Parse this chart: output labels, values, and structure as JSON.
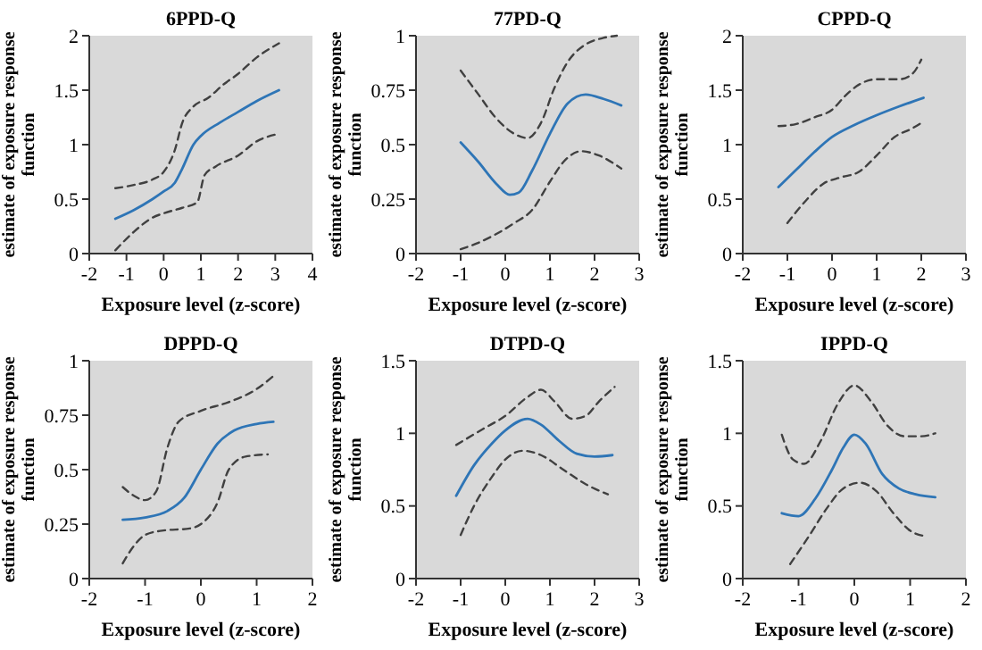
{
  "chart_data": [
    {
      "type": "line",
      "title": "6PPD-Q",
      "xlabel": "Exposure level (z-score)",
      "ylabel": "estimate of exposure response function",
      "xlim": [
        -2,
        4
      ],
      "xticks": [
        -2,
        -1,
        0,
        1,
        2,
        3,
        4
      ],
      "ylim": [
        0,
        2
      ],
      "yticks": [
        0,
        0.5,
        1,
        1.5,
        2
      ],
      "series": [
        {
          "color": "#2e75b6",
          "line_style": "solid",
          "x": [
            -1.3,
            -0.8,
            -0.3,
            0,
            0.3,
            0.5,
            0.8,
            1,
            1.5,
            2,
            2.5,
            3.1
          ],
          "values": [
            0.32,
            0.4,
            0.5,
            0.57,
            0.65,
            0.78,
            1.0,
            1.08,
            1.2,
            1.3,
            1.4,
            1.5
          ]
        },
        {
          "color": "#404040",
          "line_style": "dashed",
          "x": [
            -1.3,
            -0.8,
            -0.3,
            0,
            0.3,
            0.5,
            0.8,
            1.2,
            1.6,
            2,
            2.5,
            3.1
          ],
          "values": [
            0.6,
            0.63,
            0.68,
            0.75,
            0.95,
            1.2,
            1.35,
            1.43,
            1.55,
            1.65,
            1.8,
            1.93
          ]
        },
        {
          "color": "#404040",
          "line_style": "dashed",
          "x": [
            -1.3,
            -0.8,
            -0.3,
            0,
            0.5,
            0.9,
            1.1,
            1.4,
            2,
            2.5,
            3.1
          ],
          "values": [
            0.03,
            0.2,
            0.33,
            0.37,
            0.42,
            0.47,
            0.72,
            0.8,
            0.9,
            1.03,
            1.1
          ]
        }
      ]
    },
    {
      "type": "line",
      "title": "77PD-Q",
      "xlabel": "Exposure level (z-score)",
      "ylabel": "estimate of exposure response function",
      "xlim": [
        -2,
        3
      ],
      "xticks": [
        -2,
        -1,
        0,
        1,
        2,
        3
      ],
      "ylim": [
        0,
        1
      ],
      "yticks": [
        0,
        0.25,
        0.5,
        0.75,
        1
      ],
      "series": [
        {
          "color": "#2e75b6",
          "line_style": "solid",
          "x": [
            -1,
            -0.6,
            -0.2,
            0.1,
            0.3,
            0.6,
            1,
            1.4,
            1.8,
            2.2,
            2.6
          ],
          "values": [
            0.51,
            0.42,
            0.32,
            0.27,
            0.28,
            0.38,
            0.55,
            0.69,
            0.73,
            0.71,
            0.68
          ]
        },
        {
          "color": "#404040",
          "line_style": "dashed",
          "x": [
            -1,
            -0.6,
            -0.2,
            0.2,
            0.5,
            0.8,
            1.1,
            1.4,
            1.8,
            2.2,
            2.5
          ],
          "values": [
            0.84,
            0.73,
            0.62,
            0.55,
            0.53,
            0.6,
            0.76,
            0.88,
            0.96,
            0.99,
            1.0
          ]
        },
        {
          "color": "#404040",
          "line_style": "dashed",
          "x": [
            -1,
            -0.6,
            -0.2,
            0.2,
            0.6,
            1,
            1.3,
            1.7,
            2.1,
            2.6
          ],
          "values": [
            0.02,
            0.05,
            0.09,
            0.14,
            0.2,
            0.33,
            0.42,
            0.47,
            0.45,
            0.39
          ]
        }
      ]
    },
    {
      "type": "line",
      "title": "CPPD-Q",
      "xlabel": "Exposure level (z-score)",
      "ylabel": "estimate of exposure response function",
      "xlim": [
        -2,
        3
      ],
      "xticks": [
        -2,
        -1,
        0,
        1,
        2,
        3
      ],
      "ylim": [
        0,
        2
      ],
      "yticks": [
        0,
        0.5,
        1,
        1.5,
        2
      ],
      "series": [
        {
          "color": "#2e75b6",
          "line_style": "solid",
          "x": [
            -1.2,
            -0.8,
            -0.4,
            0,
            0.5,
            1,
            1.5,
            2.05
          ],
          "values": [
            0.61,
            0.77,
            0.93,
            1.07,
            1.18,
            1.27,
            1.35,
            1.43
          ]
        },
        {
          "color": "#404040",
          "line_style": "dashed",
          "x": [
            -1.2,
            -0.8,
            -0.4,
            0,
            0.3,
            0.6,
            1,
            1.5,
            1.8,
            2
          ],
          "values": [
            1.17,
            1.19,
            1.25,
            1.32,
            1.45,
            1.55,
            1.6,
            1.6,
            1.65,
            1.78
          ]
        },
        {
          "color": "#404040",
          "line_style": "dashed",
          "x": [
            -1,
            -0.6,
            -0.2,
            0.2,
            0.6,
            1,
            1.4,
            1.8,
            2
          ],
          "values": [
            0.28,
            0.48,
            0.64,
            0.7,
            0.75,
            0.9,
            1.07,
            1.15,
            1.2
          ]
        }
      ]
    },
    {
      "type": "line",
      "title": "DPPD-Q",
      "xlabel": "Exposure level (z-score)",
      "ylabel": "estimate of exposure response function",
      "xlim": [
        -2,
        2
      ],
      "xticks": [
        -2,
        -1,
        0,
        1,
        2
      ],
      "ylim": [
        0,
        1
      ],
      "yticks": [
        0,
        0.25,
        0.5,
        0.75,
        1
      ],
      "series": [
        {
          "color": "#2e75b6",
          "line_style": "solid",
          "x": [
            -1.4,
            -1,
            -0.6,
            -0.3,
            0,
            0.3,
            0.6,
            1,
            1.3
          ],
          "values": [
            0.27,
            0.28,
            0.31,
            0.37,
            0.5,
            0.62,
            0.68,
            0.71,
            0.72
          ]
        },
        {
          "color": "#404040",
          "line_style": "dashed",
          "x": [
            -1.4,
            -1.2,
            -1,
            -0.8,
            -0.6,
            -0.4,
            0,
            0.5,
            1,
            1.3
          ],
          "values": [
            0.42,
            0.38,
            0.36,
            0.4,
            0.6,
            0.72,
            0.77,
            0.81,
            0.87,
            0.93
          ]
        },
        {
          "color": "#404040",
          "line_style": "dashed",
          "x": [
            -1.4,
            -1.2,
            -1,
            -0.7,
            -0.2,
            0,
            0.3,
            0.5,
            0.8,
            1.2
          ],
          "values": [
            0.07,
            0.15,
            0.2,
            0.22,
            0.23,
            0.25,
            0.35,
            0.5,
            0.56,
            0.57
          ]
        }
      ]
    },
    {
      "type": "line",
      "title": "DTPD-Q",
      "xlabel": "Exposure level (z-score)",
      "ylabel": "estimate of exposure response function",
      "xlim": [
        -2,
        3
      ],
      "xticks": [
        -2,
        -1,
        0,
        1,
        2,
        3
      ],
      "ylim": [
        0,
        1.5
      ],
      "yticks": [
        0,
        0.5,
        1,
        1.5
      ],
      "series": [
        {
          "color": "#2e75b6",
          "line_style": "solid",
          "x": [
            -1.1,
            -0.7,
            -0.3,
            0,
            0.5,
            0.8,
            1.2,
            1.6,
            2,
            2.4
          ],
          "values": [
            0.57,
            0.78,
            0.93,
            1.02,
            1.1,
            1.06,
            0.95,
            0.86,
            0.84,
            0.85
          ]
        },
        {
          "color": "#404040",
          "line_style": "dashed",
          "x": [
            -1.1,
            -0.5,
            0,
            0.5,
            0.8,
            1.1,
            1.5,
            1.8,
            2.1,
            2.45
          ],
          "values": [
            0.92,
            1.03,
            1.12,
            1.25,
            1.3,
            1.22,
            1.1,
            1.12,
            1.22,
            1.32
          ]
        },
        {
          "color": "#404040",
          "line_style": "dashed",
          "x": [
            -1,
            -0.7,
            -0.3,
            0,
            0.4,
            0.8,
            1.3,
            1.8,
            2.3
          ],
          "values": [
            0.3,
            0.5,
            0.7,
            0.82,
            0.88,
            0.85,
            0.75,
            0.65,
            0.58
          ]
        }
      ]
    },
    {
      "type": "line",
      "title": "IPPD-Q",
      "xlabel": "Exposure level (z-score)",
      "ylabel": "estimate of exposure response function",
      "xlim": [
        -2,
        2
      ],
      "xticks": [
        -2,
        -1,
        0,
        1,
        2
      ],
      "ylim": [
        0,
        1.5
      ],
      "yticks": [
        0,
        0.5,
        1,
        1.5
      ],
      "series": [
        {
          "color": "#2e75b6",
          "line_style": "solid",
          "x": [
            -1.3,
            -1,
            -0.7,
            -0.4,
            -0.2,
            0,
            0.2,
            0.5,
            0.8,
            1.1,
            1.45
          ],
          "values": [
            0.45,
            0.43,
            0.55,
            0.75,
            0.9,
            0.99,
            0.93,
            0.72,
            0.62,
            0.58,
            0.56
          ]
        },
        {
          "color": "#404040",
          "line_style": "dashed",
          "x": [
            -1.3,
            -1.1,
            -0.9,
            -0.6,
            -0.3,
            0,
            0.3,
            0.6,
            0.9,
            1.2,
            1.45
          ],
          "values": [
            0.99,
            0.82,
            0.79,
            0.95,
            1.2,
            1.33,
            1.22,
            1.05,
            0.98,
            0.98,
            1.0
          ]
        },
        {
          "color": "#404040",
          "line_style": "dashed",
          "x": [
            -1.15,
            -0.8,
            -0.5,
            -0.2,
            0.1,
            0.4,
            0.7,
            1,
            1.3
          ],
          "values": [
            0.1,
            0.3,
            0.48,
            0.62,
            0.66,
            0.6,
            0.45,
            0.33,
            0.29
          ]
        }
      ]
    }
  ]
}
